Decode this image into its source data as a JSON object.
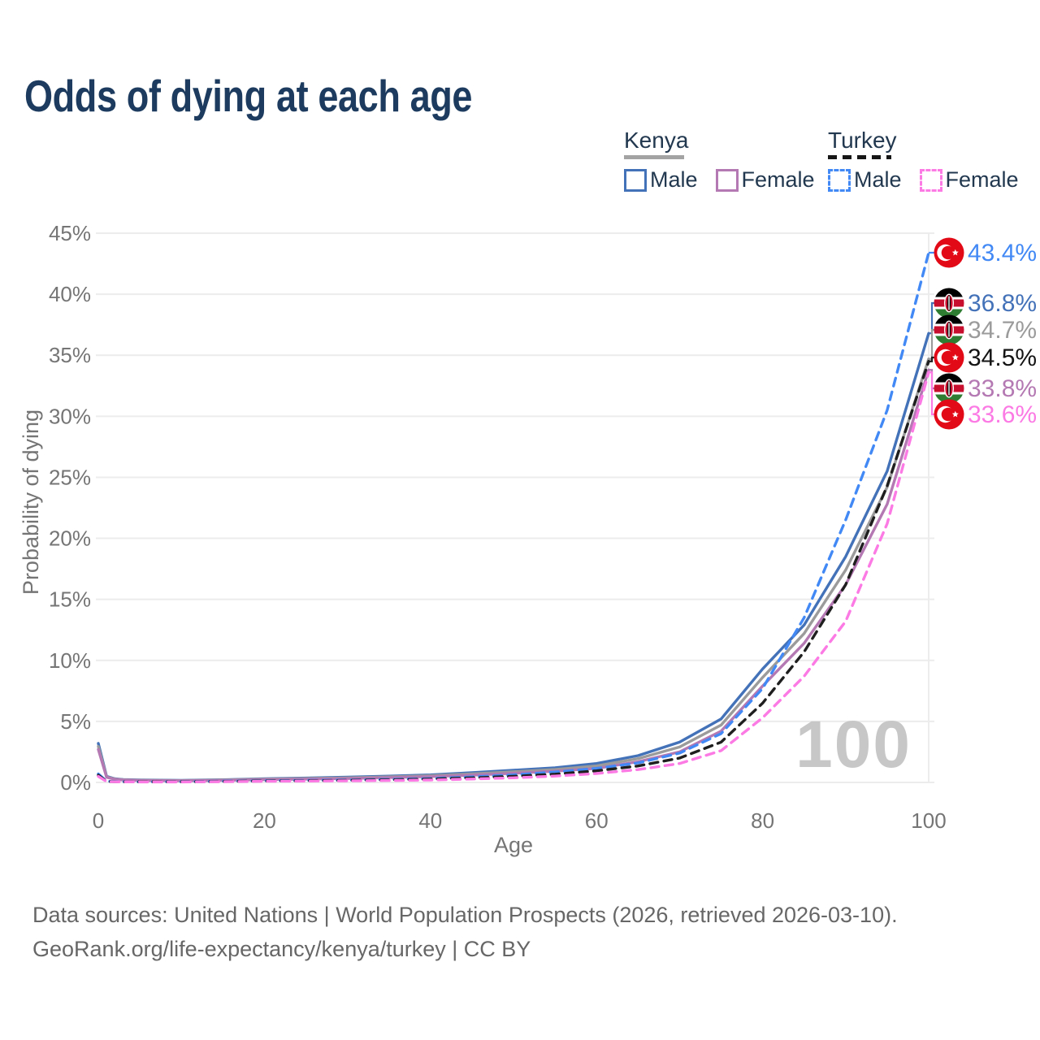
{
  "header": {
    "title": "Odds of dying at each age"
  },
  "legend": {
    "groups": [
      {
        "country": "Kenya",
        "line_style": "solid",
        "underline_color": "#a3a3a3",
        "items": [
          {
            "label": "Male",
            "color": "#4472b9",
            "dashed": false
          },
          {
            "label": "Female",
            "color": "#b478b2",
            "dashed": false
          }
        ]
      },
      {
        "country": "Turkey",
        "line_style": "dashed",
        "underline_color": "#161616",
        "items": [
          {
            "label": "Male",
            "color": "#4289f5",
            "dashed": true
          },
          {
            "label": "Female",
            "color": "#fb7ae4",
            "dashed": true
          }
        ]
      }
    ]
  },
  "chart_data": {
    "type": "line",
    "title": "Odds of dying at each age",
    "xlabel": "Age",
    "ylabel": "Probability of dying",
    "xlim": [
      0,
      100
    ],
    "ylim": [
      0,
      45
    ],
    "grid": "horizontal",
    "x_tick_labels": [
      "0",
      "20",
      "40",
      "60",
      "80",
      "100"
    ],
    "x_ticks": [
      0,
      20,
      40,
      60,
      80,
      100
    ],
    "y_ticks_percent": [
      0,
      5,
      10,
      15,
      20,
      25,
      30,
      35,
      40,
      45
    ],
    "y_tick_labels": [
      "0%",
      "5%",
      "10%",
      "15%",
      "20%",
      "25%",
      "30%",
      "35%",
      "40%",
      "45%"
    ],
    "watermark": "100",
    "x": [
      0,
      1,
      2,
      3,
      5,
      10,
      15,
      20,
      25,
      30,
      35,
      40,
      45,
      50,
      55,
      60,
      65,
      70,
      75,
      80,
      85,
      90,
      95,
      100
    ],
    "series": [
      {
        "name": "Kenya Male",
        "country": "Kenya",
        "flag": "kenya",
        "dashed": false,
        "color": "#4472b9",
        "end_label": "36.8%",
        "label_color": "#4472b9",
        "values": [
          3.2,
          0.5,
          0.3,
          0.24,
          0.2,
          0.17,
          0.22,
          0.3,
          0.36,
          0.43,
          0.52,
          0.62,
          0.8,
          1.0,
          1.2,
          1.55,
          2.2,
          3.3,
          5.2,
          9.3,
          12.9,
          18.5,
          25.5,
          36.8
        ]
      },
      {
        "name": "Kenya",
        "country": "Kenya",
        "flag": "kenya",
        "dashed": false,
        "color": "#9b9b9b",
        "end_label": "34.7%",
        "label_color": "#9b9b9b",
        "values": [
          2.95,
          0.46,
          0.28,
          0.22,
          0.18,
          0.15,
          0.2,
          0.27,
          0.32,
          0.38,
          0.46,
          0.55,
          0.7,
          0.88,
          1.06,
          1.35,
          1.95,
          2.9,
          4.7,
          8.6,
          12.2,
          17.4,
          24.2,
          34.7
        ]
      },
      {
        "name": "Kenya Female",
        "country": "Kenya",
        "flag": "kenya",
        "dashed": false,
        "color": "#b478b2",
        "end_label": "33.8%",
        "label_color": "#b478b2",
        "values": [
          2.7,
          0.42,
          0.26,
          0.2,
          0.16,
          0.13,
          0.17,
          0.23,
          0.27,
          0.32,
          0.4,
          0.48,
          0.6,
          0.75,
          0.92,
          1.15,
          1.7,
          2.5,
          4.2,
          7.9,
          11.4,
          16.2,
          22.8,
          33.8
        ]
      },
      {
        "name": "Turkey Male",
        "country": "Turkey",
        "flag": "turkey",
        "dashed": true,
        "color": "#4289f5",
        "end_label": "43.4%",
        "label_color": "#4289f5",
        "values": [
          0.7,
          0.09,
          0.07,
          0.06,
          0.055,
          0.06,
          0.1,
          0.14,
          0.17,
          0.2,
          0.25,
          0.32,
          0.45,
          0.62,
          0.85,
          1.15,
          1.6,
          2.4,
          4.0,
          7.7,
          13.5,
          21.5,
          30.5,
          43.4
        ]
      },
      {
        "name": "Turkey",
        "country": "Turkey",
        "flag": "turkey",
        "dashed": true,
        "color": "#1f1f1f",
        "end_label": "34.5%",
        "label_color": "#141414",
        "values": [
          0.6,
          0.08,
          0.06,
          0.05,
          0.05,
          0.05,
          0.08,
          0.12,
          0.14,
          0.17,
          0.21,
          0.27,
          0.37,
          0.5,
          0.68,
          0.95,
          1.35,
          2.0,
          3.3,
          6.5,
          10.7,
          16.2,
          24.3,
          34.5
        ]
      },
      {
        "name": "Turkey Female",
        "country": "Turkey",
        "flag": "turkey",
        "dashed": true,
        "color": "#fb7ae4",
        "end_label": "33.6%",
        "label_color": "#fb7ae4",
        "values": [
          0.5,
          0.07,
          0.05,
          0.045,
          0.04,
          0.04,
          0.06,
          0.09,
          0.11,
          0.13,
          0.16,
          0.2,
          0.28,
          0.38,
          0.52,
          0.73,
          1.05,
          1.55,
          2.6,
          5.3,
          8.7,
          13.2,
          21.2,
          33.6
        ]
      }
    ],
    "end_labels_top_to_bottom": [
      "43.4%",
      "36.8%",
      "34.7%",
      "34.5%",
      "33.8%",
      "33.6%"
    ]
  },
  "footer": {
    "line1": "Data sources: United Nations | World Population Prospects (2026, retrieved 2026-03-10).",
    "line2": "GeoRank.org/life-expectancy/kenya/turkey | CC BY"
  }
}
